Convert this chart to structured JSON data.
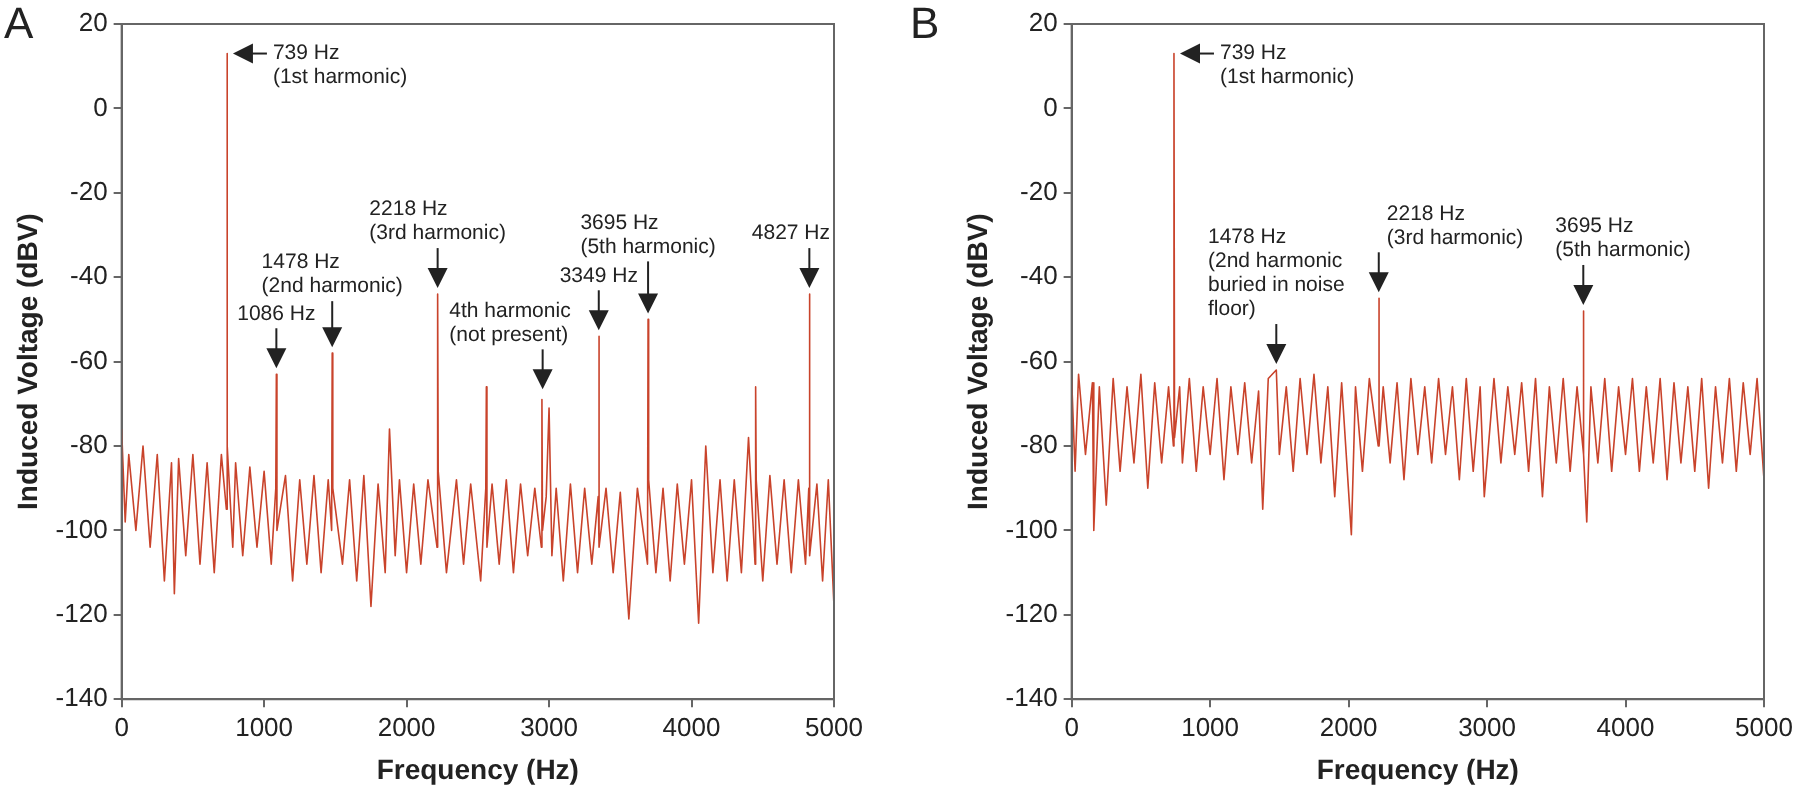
{
  "chart_data": [
    {
      "type": "line",
      "title": "A",
      "xlabel": "Frequency (Hz)",
      "ylabel": "Induced Voltage (dBV)",
      "xlim": [
        0,
        5000
      ],
      "xticks": [
        0,
        1000,
        2000,
        3000,
        4000,
        5000
      ],
      "ylim": [
        -140,
        20
      ],
      "yticks": [
        -140,
        -120,
        -100,
        -80,
        -60,
        -40,
        -20,
        0,
        20
      ],
      "grid": false,
      "x": [
        0,
        25,
        50,
        100,
        150,
        200,
        250,
        300,
        350,
        370,
        400,
        450,
        500,
        550,
        600,
        650,
        700,
        735,
        739,
        743,
        780,
        800,
        850,
        900,
        950,
        1000,
        1050,
        1082,
        1086,
        1090,
        1150,
        1200,
        1250,
        1300,
        1350,
        1400,
        1450,
        1474,
        1478,
        1482,
        1550,
        1600,
        1650,
        1700,
        1750,
        1800,
        1850,
        1880,
        1920,
        1950,
        2000,
        2050,
        2100,
        2150,
        2214,
        2218,
        2222,
        2280,
        2350,
        2400,
        2450,
        2520,
        2556,
        2560,
        2564,
        2600,
        2650,
        2700,
        2750,
        2800,
        2850,
        2900,
        2946,
        2950,
        2954,
        2980,
        3000,
        3020,
        3050,
        3100,
        3150,
        3200,
        3250,
        3300,
        3345,
        3349,
        3353,
        3400,
        3450,
        3500,
        3560,
        3620,
        3691,
        3695,
        3699,
        3750,
        3800,
        3850,
        3900,
        3950,
        4000,
        4050,
        4100,
        4150,
        4200,
        4250,
        4300,
        4350,
        4400,
        4446,
        4450,
        4454,
        4500,
        4550,
        4600,
        4650,
        4700,
        4750,
        4800,
        4823,
        4827,
        4831,
        4880,
        4920,
        4960,
        5000
      ],
      "series": [
        {
          "color": "#c9432b",
          "values": [
            -76,
            -98,
            -82,
            -100,
            -80,
            -104,
            -82,
            -112,
            -84,
            -115,
            -83,
            -106,
            -82,
            -108,
            -84,
            -110,
            -82,
            -95,
            13,
            -80,
            -104,
            -84,
            -106,
            -85,
            -104,
            -86,
            -108,
            -90,
            -63,
            -100,
            -87,
            -112,
            -88,
            -108,
            -87,
            -110,
            -88,
            -100,
            -58,
            -90,
            -108,
            -88,
            -112,
            -87,
            -118,
            -89,
            -110,
            -76,
            -106,
            -88,
            -110,
            -89,
            -108,
            -88,
            -104,
            -44,
            -86,
            -110,
            -88,
            -108,
            -89,
            -112,
            -90,
            -66,
            -104,
            -89,
            -108,
            -88,
            -110,
            -89,
            -106,
            -90,
            -104,
            -69,
            -100,
            -92,
            -71,
            -106,
            -90,
            -112,
            -89,
            -110,
            -90,
            -108,
            -92,
            -54,
            -104,
            -90,
            -110,
            -91,
            -121,
            -90,
            -108,
            -50,
            -88,
            -110,
            -90,
            -112,
            -89,
            -108,
            -88,
            -122,
            -80,
            -110,
            -88,
            -112,
            -88,
            -110,
            -78,
            -108,
            -66,
            -88,
            -112,
            -87,
            -108,
            -88,
            -110,
            -88,
            -108,
            -90,
            -44,
            -106,
            -89,
            -112,
            -88,
            -118
          ]
        }
      ],
      "annotations": [
        {
          "text": "739 Hz\n(1st harmonic)",
          "x": 739,
          "y": 13
        },
        {
          "text": "1086 Hz",
          "x": 1086,
          "y": -63
        },
        {
          "text": "1478 Hz\n(2nd harmonic)",
          "x": 1478,
          "y": -58
        },
        {
          "text": "2218 Hz\n(3rd harmonic)",
          "x": 2218,
          "y": -44
        },
        {
          "text": "4th harmonic\n(not present)",
          "x": 2955,
          "y": -68
        },
        {
          "text": "3349 Hz",
          "x": 3349,
          "y": -54
        },
        {
          "text": "3695 Hz\n(5th harmonic)",
          "x": 3695,
          "y": -50
        },
        {
          "text": "4827 Hz",
          "x": 4827,
          "y": -44
        }
      ]
    },
    {
      "type": "line",
      "title": "B",
      "xlabel": "Frequency (Hz)",
      "ylabel": "Induced Voltage (dBV)",
      "xlim": [
        0,
        5000
      ],
      "xticks": [
        0,
        1000,
        2000,
        3000,
        4000,
        5000
      ],
      "ylim": [
        -140,
        20
      ],
      "yticks": [
        -140,
        -120,
        -100,
        -80,
        -60,
        -40,
        -20,
        0,
        20
      ],
      "grid": false,
      "x": [
        0,
        25,
        50,
        100,
        150,
        160,
        200,
        250,
        300,
        350,
        400,
        450,
        500,
        550,
        600,
        650,
        700,
        735,
        739,
        743,
        780,
        800,
        850,
        900,
        950,
        1000,
        1050,
        1100,
        1150,
        1200,
        1250,
        1300,
        1350,
        1380,
        1420,
        1478,
        1500,
        1550,
        1600,
        1650,
        1700,
        1750,
        1800,
        1850,
        1900,
        1950,
        2020,
        2050,
        2100,
        2150,
        2214,
        2218,
        2222,
        2250,
        2300,
        2350,
        2400,
        2450,
        2500,
        2550,
        2600,
        2650,
        2700,
        2750,
        2800,
        2850,
        2900,
        2950,
        2980,
        3050,
        3100,
        3150,
        3200,
        3250,
        3300,
        3350,
        3400,
        3450,
        3500,
        3550,
        3600,
        3650,
        3691,
        3695,
        3699,
        3720,
        3750,
        3800,
        3850,
        3900,
        3950,
        4000,
        4050,
        4100,
        4150,
        4200,
        4250,
        4300,
        4350,
        4400,
        4450,
        4500,
        4550,
        4600,
        4650,
        4700,
        4750,
        4800,
        4850,
        4900,
        4950,
        5000
      ],
      "series": [
        {
          "color": "#c9432b",
          "values": [
            -64,
            -86,
            -63,
            -82,
            -65,
            -100,
            -66,
            -94,
            -64,
            -86,
            -66,
            -84,
            -63,
            -90,
            -65,
            -84,
            -66,
            -80,
            13,
            -78,
            -66,
            -84,
            -64,
            -86,
            -66,
            -82,
            -64,
            -88,
            -66,
            -82,
            -65,
            -84,
            -67,
            -95,
            -64,
            -62,
            -82,
            -66,
            -86,
            -64,
            -82,
            -63,
            -84,
            -66,
            -92,
            -65,
            -101,
            -66,
            -86,
            -64,
            -80,
            -45,
            -80,
            -66,
            -84,
            -65,
            -88,
            -64,
            -82,
            -66,
            -84,
            -64,
            -82,
            -66,
            -88,
            -64,
            -86,
            -66,
            -92,
            -64,
            -84,
            -66,
            -82,
            -65,
            -86,
            -64,
            -92,
            -66,
            -84,
            -64,
            -86,
            -66,
            -80,
            -48,
            -82,
            -98,
            -66,
            -84,
            -64,
            -86,
            -66,
            -82,
            -64,
            -86,
            -66,
            -84,
            -64,
            -88,
            -65,
            -84,
            -66,
            -86,
            -64,
            -90,
            -66,
            -84,
            -64,
            -86,
            -65,
            -82,
            -64,
            -88
          ]
        }
      ],
      "annotations": [
        {
          "text": "739 Hz\n(1st harmonic)",
          "x": 739,
          "y": 13
        },
        {
          "text": "1478 Hz\n(2nd harmonic\nburied in noise\nfloor)",
          "x": 1478,
          "y": -62
        },
        {
          "text": "2218 Hz\n(3rd harmonic)",
          "x": 2218,
          "y": -45
        },
        {
          "text": "3695 Hz\n(5th harmonic)",
          "x": 3695,
          "y": -48
        }
      ]
    }
  ]
}
